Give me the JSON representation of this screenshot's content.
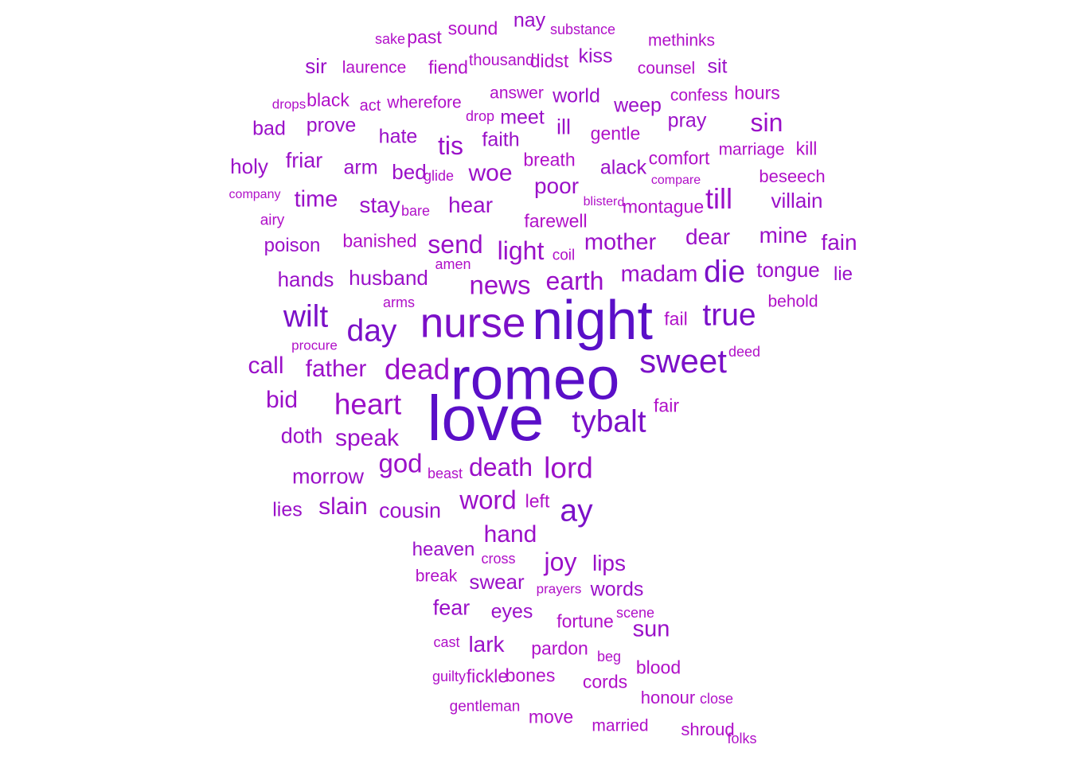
{
  "palette": {
    "top": "#5a0fc8",
    "high": "#7b10c8",
    "mid": "#9a10c8",
    "low": "#b010c8"
  },
  "words": [
    {
      "text": "love",
      "weight": 1.0
    },
    {
      "text": "romeo",
      "weight": 0.93
    },
    {
      "text": "night",
      "weight": 0.86
    },
    {
      "text": "nurse",
      "weight": 0.62
    },
    {
      "text": "sweet",
      "weight": 0.46
    },
    {
      "text": "tybalt",
      "weight": 0.42
    },
    {
      "text": "true",
      "weight": 0.42
    },
    {
      "text": "day",
      "weight": 0.41
    },
    {
      "text": "wilt",
      "weight": 0.41
    },
    {
      "text": "ay",
      "weight": 0.42
    },
    {
      "text": "die",
      "weight": 0.41
    },
    {
      "text": "dead",
      "weight": 0.38
    },
    {
      "text": "heart",
      "weight": 0.38
    },
    {
      "text": "lord",
      "weight": 0.38
    },
    {
      "text": "till",
      "weight": 0.37
    },
    {
      "text": "god",
      "weight": 0.33
    },
    {
      "text": "news",
      "weight": 0.33
    },
    {
      "text": "word",
      "weight": 0.33
    },
    {
      "text": "death",
      "weight": 0.32
    },
    {
      "text": "earth",
      "weight": 0.31
    },
    {
      "text": "light",
      "weight": 0.31
    },
    {
      "text": "send",
      "weight": 0.31
    },
    {
      "text": "tis",
      "weight": 0.31
    },
    {
      "text": "call",
      "weight": 0.29
    },
    {
      "text": "father",
      "weight": 0.29
    },
    {
      "text": "bid",
      "weight": 0.29
    },
    {
      "text": "speak",
      "weight": 0.28
    },
    {
      "text": "joy",
      "weight": 0.31
    },
    {
      "text": "sin",
      "weight": 0.31
    },
    {
      "text": "madam",
      "weight": 0.27
    },
    {
      "text": "mother",
      "weight": 0.27
    },
    {
      "text": "hand",
      "weight": 0.28
    },
    {
      "text": "woe",
      "weight": 0.28
    },
    {
      "text": "slain",
      "weight": 0.28
    },
    {
      "text": "time",
      "weight": 0.27
    },
    {
      "text": "hear",
      "weight": 0.26
    },
    {
      "text": "stay",
      "weight": 0.26
    },
    {
      "text": "poor",
      "weight": 0.26
    },
    {
      "text": "mine",
      "weight": 0.26
    },
    {
      "text": "dear",
      "weight": 0.25
    },
    {
      "text": "fain",
      "weight": 0.26
    },
    {
      "text": "sun",
      "weight": 0.27
    },
    {
      "text": "doth",
      "weight": 0.24
    },
    {
      "text": "cousin",
      "weight": 0.24
    },
    {
      "text": "morrow",
      "weight": 0.24
    },
    {
      "text": "friar",
      "weight": 0.24
    },
    {
      "text": "husband",
      "weight": 0.23
    },
    {
      "text": "hands",
      "weight": 0.23
    },
    {
      "text": "holy",
      "weight": 0.23
    },
    {
      "text": "bed",
      "weight": 0.23
    },
    {
      "text": "fear",
      "weight": 0.24
    },
    {
      "text": "lark",
      "weight": 0.25
    },
    {
      "text": "lips",
      "weight": 0.25
    },
    {
      "text": "ill",
      "weight": 0.24
    },
    {
      "text": "tongue",
      "weight": 0.23
    },
    {
      "text": "eyes",
      "weight": 0.22
    },
    {
      "text": "swear",
      "weight": 0.23
    },
    {
      "text": "words",
      "weight": 0.22
    },
    {
      "text": "villain",
      "weight": 0.23
    },
    {
      "text": "lies",
      "weight": 0.22
    },
    {
      "text": "sir",
      "weight": 0.23
    },
    {
      "text": "meet",
      "weight": 0.22
    },
    {
      "text": "hate",
      "weight": 0.22
    },
    {
      "text": "faith",
      "weight": 0.22
    },
    {
      "text": "pray",
      "weight": 0.22
    },
    {
      "text": "weep",
      "weight": 0.21
    },
    {
      "text": "world",
      "weight": 0.21
    },
    {
      "text": "kiss",
      "weight": 0.21
    },
    {
      "text": "nay",
      "weight": 0.22
    },
    {
      "text": "alack",
      "weight": 0.21
    },
    {
      "text": "arm",
      "weight": 0.21
    },
    {
      "text": "prove",
      "weight": 0.21
    },
    {
      "text": "bad",
      "weight": 0.21
    },
    {
      "text": "heaven",
      "weight": 0.2
    },
    {
      "text": "lie",
      "weight": 0.2
    },
    {
      "text": "sit",
      "weight": 0.22
    },
    {
      "text": "fail",
      "weight": 0.19
    },
    {
      "text": "fair",
      "weight": 0.19
    },
    {
      "text": "black",
      "weight": 0.18
    },
    {
      "text": "poison",
      "weight": 0.2
    },
    {
      "text": "farewell",
      "weight": 0.19
    },
    {
      "text": "breath",
      "weight": 0.19
    },
    {
      "text": "montague",
      "weight": 0.18
    },
    {
      "text": "comfort",
      "weight": 0.18
    },
    {
      "text": "banished",
      "weight": 0.18
    },
    {
      "text": "fortune",
      "weight": 0.19
    },
    {
      "text": "pardon",
      "weight": 0.18
    },
    {
      "text": "fiend",
      "weight": 0.19
    },
    {
      "text": "past",
      "weight": 0.19
    },
    {
      "text": "hours",
      "weight": 0.19
    },
    {
      "text": "sound",
      "weight": 0.18
    },
    {
      "text": "gentle",
      "weight": 0.19
    },
    {
      "text": "didst",
      "weight": 0.19
    },
    {
      "text": "bones",
      "weight": 0.18
    },
    {
      "text": "blood",
      "weight": 0.18
    },
    {
      "text": "kill",
      "weight": 0.19
    },
    {
      "text": "cords",
      "weight": 0.18
    },
    {
      "text": "move",
      "weight": 0.19
    },
    {
      "text": "beseech",
      "weight": 0.17
    },
    {
      "text": "left",
      "weight": 0.18
    },
    {
      "text": "fickle",
      "weight": 0.18
    },
    {
      "text": "honour",
      "weight": 0.17
    },
    {
      "text": "shroud",
      "weight": 0.17
    },
    {
      "text": "marriage",
      "weight": 0.16
    },
    {
      "text": "wherefore",
      "weight": 0.16
    },
    {
      "text": "answer",
      "weight": 0.16
    },
    {
      "text": "confess",
      "weight": 0.16
    },
    {
      "text": "counsel",
      "weight": 0.16
    },
    {
      "text": "behold",
      "weight": 0.16
    },
    {
      "text": "laurence",
      "weight": 0.15
    },
    {
      "text": "break",
      "weight": 0.15
    },
    {
      "text": "methinks",
      "weight": 0.15
    },
    {
      "text": "married",
      "weight": 0.15
    },
    {
      "text": "airy",
      "weight": 0.13
    },
    {
      "text": "thousand",
      "weight": 0.14
    },
    {
      "text": "act",
      "weight": 0.14
    },
    {
      "text": "gentleman",
      "weight": 0.13
    },
    {
      "text": "coil",
      "weight": 0.13
    },
    {
      "text": "bare",
      "weight": 0.12
    },
    {
      "text": "arms",
      "weight": 0.12
    },
    {
      "text": "glide",
      "weight": 0.11
    },
    {
      "text": "deed",
      "weight": 0.11
    },
    {
      "text": "amen",
      "weight": 0.11
    },
    {
      "text": "cross",
      "weight": 0.11
    },
    {
      "text": "beast",
      "weight": 0.11
    },
    {
      "text": "scene",
      "weight": 0.11
    },
    {
      "text": "cast",
      "weight": 0.12
    },
    {
      "text": "beg",
      "weight": 0.12
    },
    {
      "text": "close",
      "weight": 0.11
    },
    {
      "text": "folks",
      "weight": 0.11
    },
    {
      "text": "guilty",
      "weight": 0.11
    },
    {
      "text": "prayers",
      "weight": 0.1
    },
    {
      "text": "drop",
      "weight": 0.11
    },
    {
      "text": "drops",
      "weight": 0.1
    },
    {
      "text": "sake",
      "weight": 0.11
    },
    {
      "text": "substance",
      "weight": 0.11
    },
    {
      "text": "procure",
      "weight": 0.1
    },
    {
      "text": "company",
      "weight": 0.09
    },
    {
      "text": "compare",
      "weight": 0.09
    },
    {
      "text": "blister",
      "weight": 0.09
    },
    {
      "text": "d",
      "weight": 0.09
    }
  ]
}
